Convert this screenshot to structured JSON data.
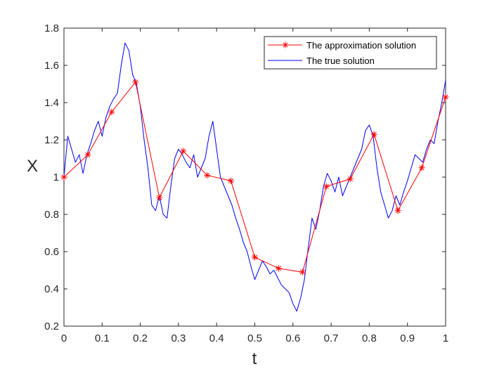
{
  "chart_data": {
    "type": "line",
    "xlabel": "t",
    "ylabel": "X",
    "xlim": [
      0,
      1
    ],
    "ylim": [
      0.2,
      1.8
    ],
    "x_ticks": [
      "0",
      "0.1",
      "0.2",
      "0.3",
      "0.4",
      "0.5",
      "0.6",
      "0.7",
      "0.8",
      "0.9",
      "1"
    ],
    "y_ticks": [
      "0.2",
      "0.4",
      "0.6",
      "0.8",
      "1",
      "1.2",
      "1.4",
      "1.6",
      "1.8"
    ],
    "grid": false,
    "legend_position": "top-right",
    "series": [
      {
        "name": "The approximation solution",
        "color": "#ff0000",
        "marker": "asterisk",
        "x": [
          0,
          0.0625,
          0.125,
          0.1875,
          0.25,
          0.3125,
          0.375,
          0.4375,
          0.5,
          0.5625,
          0.625,
          0.6875,
          0.75,
          0.8125,
          0.875,
          0.9375,
          1
        ],
        "y": [
          1.0,
          1.12,
          1.35,
          1.51,
          0.89,
          1.14,
          1.01,
          0.98,
          0.57,
          0.51,
          0.49,
          0.95,
          0.99,
          1.23,
          0.82,
          1.05,
          1.43
        ]
      },
      {
        "name": "The true solution",
        "color": "#0000ff",
        "x": [
          0,
          0.01,
          0.02,
          0.03,
          0.04,
          0.05,
          0.06,
          0.07,
          0.08,
          0.09,
          0.1,
          0.11,
          0.12,
          0.13,
          0.14,
          0.15,
          0.16,
          0.17,
          0.18,
          0.19,
          0.2,
          0.21,
          0.22,
          0.23,
          0.24,
          0.25,
          0.26,
          0.27,
          0.28,
          0.29,
          0.3,
          0.31,
          0.32,
          0.33,
          0.34,
          0.35,
          0.36,
          0.37,
          0.38,
          0.39,
          0.4,
          0.41,
          0.42,
          0.43,
          0.44,
          0.45,
          0.46,
          0.47,
          0.48,
          0.49,
          0.5,
          0.51,
          0.52,
          0.53,
          0.54,
          0.55,
          0.56,
          0.57,
          0.58,
          0.59,
          0.6,
          0.61,
          0.62,
          0.63,
          0.64,
          0.65,
          0.66,
          0.67,
          0.68,
          0.69,
          0.7,
          0.71,
          0.72,
          0.73,
          0.74,
          0.75,
          0.76,
          0.77,
          0.78,
          0.79,
          0.8,
          0.81,
          0.82,
          0.83,
          0.84,
          0.85,
          0.86,
          0.87,
          0.88,
          0.89,
          0.9,
          0.91,
          0.92,
          0.93,
          0.94,
          0.95,
          0.96,
          0.97,
          0.98,
          0.99,
          1.0
        ],
        "y": [
          1.0,
          1.22,
          1.15,
          1.08,
          1.12,
          1.02,
          1.12,
          1.18,
          1.25,
          1.3,
          1.22,
          1.32,
          1.38,
          1.42,
          1.45,
          1.6,
          1.72,
          1.68,
          1.55,
          1.5,
          1.38,
          1.2,
          1.05,
          0.85,
          0.82,
          0.9,
          0.8,
          0.78,
          0.95,
          1.1,
          1.15,
          1.12,
          1.08,
          1.05,
          1.12,
          1.0,
          1.05,
          1.1,
          1.22,
          1.3,
          1.15,
          1.0,
          0.95,
          0.9,
          0.85,
          0.78,
          0.72,
          0.65,
          0.6,
          0.52,
          0.45,
          0.5,
          0.55,
          0.52,
          0.48,
          0.5,
          0.46,
          0.42,
          0.4,
          0.38,
          0.32,
          0.28,
          0.35,
          0.45,
          0.62,
          0.78,
          0.72,
          0.82,
          0.95,
          1.02,
          0.98,
          0.92,
          1.0,
          0.9,
          0.95,
          1.0,
          1.05,
          1.1,
          1.15,
          1.25,
          1.28,
          1.22,
          1.05,
          0.92,
          0.85,
          0.78,
          0.82,
          0.9,
          0.85,
          0.92,
          0.98,
          1.05,
          1.12,
          1.1,
          1.08,
          1.15,
          1.2,
          1.18,
          1.3,
          1.4,
          1.52
        ]
      }
    ]
  }
}
